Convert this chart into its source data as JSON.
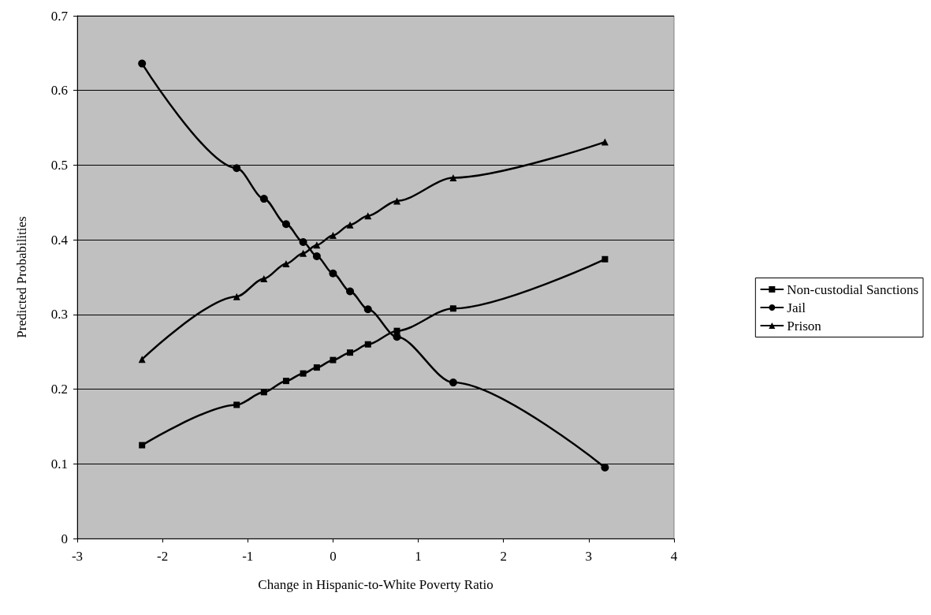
{
  "chart_data": {
    "type": "line",
    "xlabel": "Change in Hispanic-to-White Poverty Ratio",
    "ylabel": "Predicted Probabilities",
    "x": [
      -2.24,
      -1.13,
      -0.81,
      -0.55,
      -0.35,
      -0.19,
      0,
      0.2,
      0.41,
      0.75,
      1.41,
      3.19
    ],
    "series": [
      {
        "name": "Non-custodial Sanctions",
        "color": "#000000",
        "marker": "square",
        "values": [
          0.125,
          0.179,
          0.196,
          0.211,
          0.221,
          0.229,
          0.239,
          0.249,
          0.26,
          0.278,
          0.308,
          0.374
        ]
      },
      {
        "name": "Jail",
        "color": "#000000",
        "marker": "circle",
        "values": [
          0.636,
          0.496,
          0.455,
          0.421,
          0.397,
          0.378,
          0.355,
          0.331,
          0.307,
          0.27,
          0.209,
          0.095
        ]
      },
      {
        "name": "Prison",
        "color": "#000000",
        "marker": "triangle",
        "values": [
          0.24,
          0.324,
          0.348,
          0.368,
          0.382,
          0.393,
          0.406,
          0.42,
          0.432,
          0.452,
          0.483,
          0.531
        ]
      }
    ],
    "xlim": [
      -3,
      4
    ],
    "xticks": [
      -3,
      -2,
      -1,
      0,
      1,
      2,
      3,
      4
    ],
    "ylim": [
      0,
      0.7
    ],
    "yticks": [
      0,
      0.1,
      0.2,
      0.3,
      0.4,
      0.5,
      0.6,
      0.7
    ],
    "grid": "y",
    "legend": "right",
    "line_style": "solid"
  }
}
